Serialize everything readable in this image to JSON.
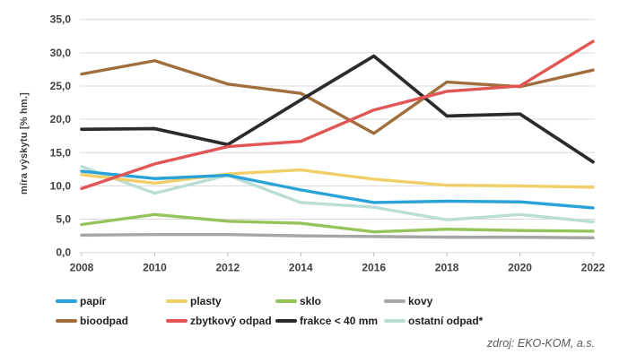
{
  "chart_data": {
    "type": "line",
    "title": "",
    "xlabel": "",
    "ylabel": "míra výskytu  [% hm.]",
    "ylim": [
      0,
      35
    ],
    "ytick_step": 5,
    "ytick_labels": [
      "0,0",
      "5,0",
      "10,0",
      "15,0",
      "20,0",
      "25,0",
      "30,0",
      "35,0"
    ],
    "categories": [
      "2008",
      "2010",
      "2012",
      "2014",
      "2016",
      "2018",
      "2020",
      "2022"
    ],
    "grid": true,
    "legend_position": "bottom",
    "series": [
      {
        "name": "papír",
        "color": "#29A3D7",
        "values": [
          12.2,
          11.1,
          11.6,
          9.4,
          7.5,
          7.7,
          7.6,
          6.7
        ]
      },
      {
        "name": "plasty",
        "color": "#F0CF69",
        "values": [
          11.7,
          10.4,
          11.8,
          12.4,
          11.0,
          10.1,
          10.0,
          9.8
        ]
      },
      {
        "name": "sklo",
        "color": "#95C45C",
        "values": [
          4.2,
          5.7,
          4.7,
          4.4,
          3.1,
          3.5,
          3.3,
          3.2
        ]
      },
      {
        "name": "kovy",
        "color": "#A6A6A6",
        "values": [
          2.6,
          2.7,
          2.7,
          2.5,
          2.4,
          2.3,
          2.3,
          2.2
        ]
      },
      {
        "name": "bioodpad",
        "color": "#A06E3C",
        "values": [
          26.8,
          28.8,
          25.3,
          23.9,
          17.9,
          25.6,
          24.9,
          27.4
        ]
      },
      {
        "name": "zbytkový odpad",
        "color": "#E15654",
        "values": [
          9.6,
          13.3,
          15.9,
          16.7,
          21.4,
          24.2,
          25.0,
          31.7
        ]
      },
      {
        "name": "frakce < 40 mm",
        "color": "#2B2B2B",
        "values": [
          18.5,
          18.6,
          16.2,
          22.9,
          29.5,
          20.5,
          20.8,
          13.6
        ]
      },
      {
        "name": "ostatní odpad*",
        "color": "#BADDD6",
        "values": [
          12.9,
          8.9,
          11.6,
          7.5,
          6.8,
          4.9,
          5.7,
          4.6
        ]
      }
    ],
    "draw_order": [
      7,
      3,
      2,
      1,
      0,
      4,
      6,
      5
    ],
    "source": "zdroj: EKO-KOM, a.s."
  }
}
